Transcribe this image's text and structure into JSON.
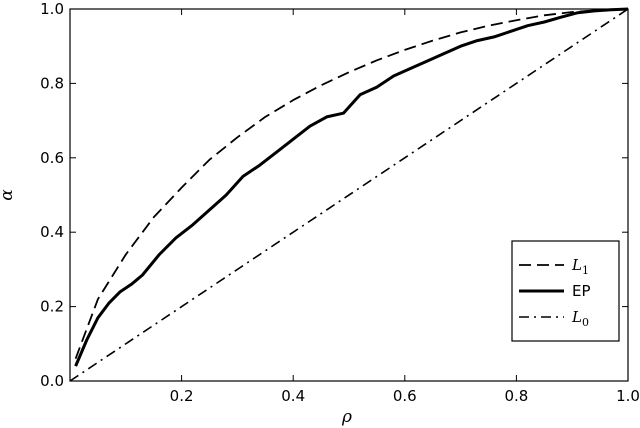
{
  "chart_data": {
    "type": "line",
    "xlabel": "ρ",
    "ylabel": "α",
    "xlim": [
      0,
      1
    ],
    "ylim": [
      0,
      1
    ],
    "xticks": [
      0.2,
      0.4,
      0.6,
      0.8,
      1.0
    ],
    "yticks": [
      0.0,
      0.2,
      0.4,
      0.6,
      0.8,
      1.0
    ],
    "xtick_labels": [
      "0.2",
      "0.4",
      "0.6",
      "0.8",
      "1.0"
    ],
    "ytick_labels": [
      "0.0",
      "0.2",
      "0.4",
      "0.6",
      "0.8",
      "1.0"
    ],
    "grid": false,
    "legend_position": "lower-right",
    "series": [
      {
        "name": "L1",
        "style": "dashed",
        "x": [
          0.01,
          0.05,
          0.1,
          0.15,
          0.2,
          0.25,
          0.3,
          0.35,
          0.4,
          0.45,
          0.5,
          0.55,
          0.6,
          0.65,
          0.7,
          0.75,
          0.8,
          0.85,
          0.9,
          0.95,
          1.0
        ],
        "y": [
          0.06,
          0.22,
          0.34,
          0.44,
          0.52,
          0.595,
          0.655,
          0.71,
          0.755,
          0.795,
          0.83,
          0.862,
          0.89,
          0.915,
          0.937,
          0.955,
          0.97,
          0.983,
          0.992,
          0.997,
          1.0
        ]
      },
      {
        "name": "EP",
        "style": "solid",
        "x": [
          0.01,
          0.03,
          0.05,
          0.07,
          0.09,
          0.11,
          0.13,
          0.16,
          0.19,
          0.22,
          0.25,
          0.28,
          0.31,
          0.34,
          0.37,
          0.4,
          0.43,
          0.46,
          0.49,
          0.52,
          0.55,
          0.58,
          0.61,
          0.64,
          0.67,
          0.7,
          0.73,
          0.76,
          0.79,
          0.82,
          0.85,
          0.88,
          0.91,
          0.94,
          0.97,
          1.0
        ],
        "y": [
          0.04,
          0.11,
          0.17,
          0.21,
          0.24,
          0.26,
          0.285,
          0.34,
          0.385,
          0.42,
          0.46,
          0.5,
          0.55,
          0.58,
          0.615,
          0.65,
          0.685,
          0.71,
          0.72,
          0.77,
          0.79,
          0.82,
          0.84,
          0.86,
          0.88,
          0.9,
          0.915,
          0.925,
          0.94,
          0.955,
          0.965,
          0.978,
          0.99,
          0.995,
          0.998,
          1.0
        ]
      },
      {
        "name": "L0",
        "style": "dashdot",
        "x": [
          0,
          1
        ],
        "y": [
          0,
          1
        ]
      }
    ],
    "legend": [
      {
        "label": "L",
        "sub": "1",
        "style": "dashed",
        "math": true
      },
      {
        "label": "EP",
        "sub": "",
        "style": "solid",
        "math": false
      },
      {
        "label": "L",
        "sub": "0",
        "style": "dashdot",
        "math": true
      }
    ]
  }
}
